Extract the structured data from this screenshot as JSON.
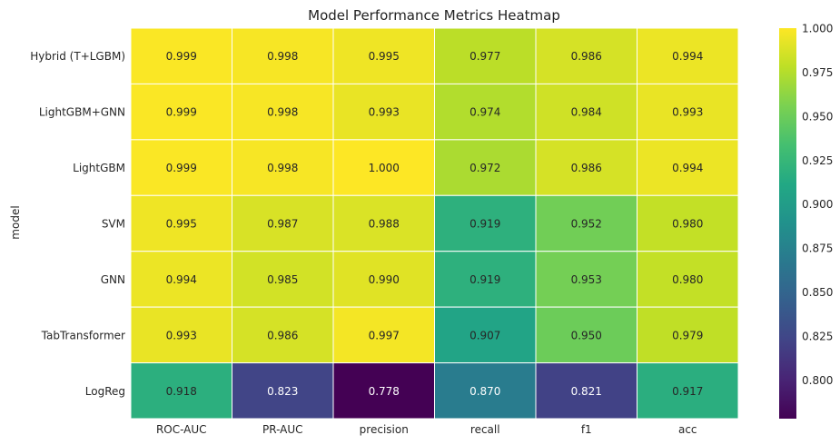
{
  "chart_data": {
    "type": "heatmap",
    "title": "Model Performance Metrics Heatmap",
    "xlabel": "",
    "ylabel": "model",
    "columns": [
      "ROC-AUC",
      "PR-AUC",
      "precision",
      "recall",
      "f1",
      "acc"
    ],
    "rows": [
      "Hybrid (T+LGBM)",
      "LightGBM+GNN",
      "LightGBM",
      "SVM",
      "GNN",
      "TabTransformer",
      "LogReg"
    ],
    "values": [
      [
        0.999,
        0.998,
        0.995,
        0.977,
        0.986,
        0.994
      ],
      [
        0.999,
        0.998,
        0.993,
        0.974,
        0.984,
        0.993
      ],
      [
        0.999,
        0.998,
        1.0,
        0.972,
        0.986,
        0.994
      ],
      [
        0.995,
        0.987,
        0.988,
        0.919,
        0.952,
        0.98
      ],
      [
        0.994,
        0.985,
        0.99,
        0.919,
        0.953,
        0.98
      ],
      [
        0.993,
        0.986,
        0.997,
        0.907,
        0.95,
        0.979
      ],
      [
        0.918,
        0.823,
        0.778,
        0.87,
        0.821,
        0.917
      ]
    ],
    "value_format": "0.000",
    "colormap": "viridis",
    "vmin": 0.778,
    "vmax": 1.0,
    "colorbar_ticks": [
      0.8,
      0.825,
      0.85,
      0.875,
      0.9,
      0.925,
      0.95,
      0.975,
      1.0
    ],
    "colorbar_tick_labels": [
      "0.800",
      "0.825",
      "0.850",
      "0.875",
      "0.900",
      "0.925",
      "0.950",
      "0.975",
      "1.000"
    ]
  }
}
